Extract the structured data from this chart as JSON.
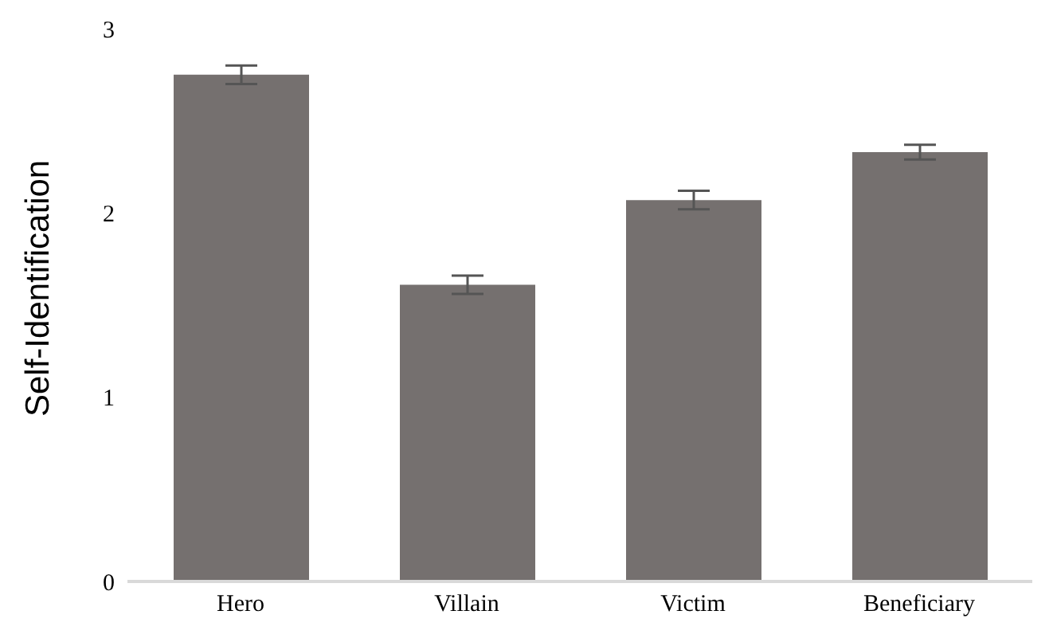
{
  "chart_data": {
    "type": "bar",
    "ylabel": "Self-Identification",
    "categories": [
      "Hero",
      "Villain",
      "Victim",
      "Beneficiary"
    ],
    "values": [
      2.75,
      1.61,
      2.07,
      2.33
    ],
    "errors": [
      0.05,
      0.05,
      0.05,
      0.04
    ],
    "color": "#75706f",
    "ylim": [
      0,
      3
    ],
    "yticks": [
      0,
      1,
      2,
      3
    ],
    "grid": false,
    "legend": false
  }
}
